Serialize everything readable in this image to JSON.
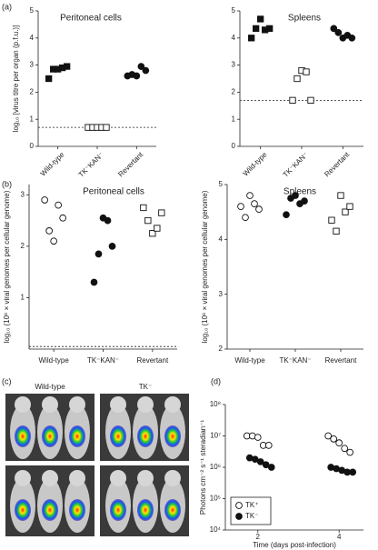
{
  "chart_data": [
    {
      "type": "strip",
      "panel": "(a)",
      "title": "Peritoneal cells",
      "ylabel": "log₁₀ [virus titre per organ (p.f.u.)]",
      "categories": [
        "Wild-type",
        "TK⁻KAN⁻",
        "Revertant"
      ],
      "values": [
        [
          2.5,
          2.85,
          2.85,
          2.9,
          2.95
        ],
        [
          0.7,
          0.7,
          0.7,
          0.7,
          0.7
        ],
        [
          2.6,
          2.65,
          2.6,
          2.95,
          2.8
        ]
      ],
      "markers": [
        "filled-square",
        "open-square",
        "filled-circle"
      ],
      "threshold": 0.7,
      "ylim": [
        0,
        5
      ],
      "yticks": [
        0,
        1,
        2,
        3,
        4,
        5
      ]
    },
    {
      "type": "strip",
      "title": "Spleens",
      "categories": [
        "Wild-type",
        "TK⁻KAN⁻",
        "Revertant"
      ],
      "values": [
        [
          4.0,
          4.35,
          4.7,
          4.3,
          4.35
        ],
        [
          1.7,
          2.5,
          2.8,
          2.75,
          1.7
        ],
        [
          4.35,
          4.2,
          4.0,
          4.1,
          4.0
        ]
      ],
      "markers": [
        "filled-square",
        "open-square",
        "filled-circle"
      ],
      "threshold": 1.7,
      "ylim": [
        0,
        5
      ],
      "yticks": [
        0,
        1,
        2,
        3,
        4,
        5
      ]
    },
    {
      "type": "strip",
      "panel": "(b)",
      "title": "Peritoneal cells",
      "ylabel": "log₁₀ (10⁶ × viral genomes per cellular genome)",
      "categories": [
        "Wild-type",
        "TK⁻KAN⁻",
        "Revertant"
      ],
      "values": [
        [
          2.9,
          2.3,
          2.1,
          2.8,
          2.55
        ],
        [
          1.3,
          1.85,
          2.55,
          2.5,
          2.0
        ],
        [
          2.75,
          2.5,
          2.25,
          2.35,
          2.65
        ]
      ],
      "markers": [
        "open-circle",
        "filled-circle",
        "open-square"
      ],
      "threshold": 0.05,
      "ylim": [
        0,
        3.2
      ],
      "yticks": [
        1,
        2,
        3
      ]
    },
    {
      "type": "strip",
      "title": "Spleens",
      "ylabel": "log₁₀ (10⁶ × viral genomes per cellular genome)",
      "categories": [
        "Wild-type",
        "TK⁻KAN⁻",
        "Revertant"
      ],
      "values": [
        [
          4.6,
          4.4,
          4.8,
          4.65,
          4.55
        ],
        [
          4.45,
          4.75,
          4.8,
          4.65,
          4.7
        ],
        [
          4.35,
          4.15,
          4.8,
          4.5,
          4.6
        ]
      ],
      "markers": [
        "open-circle",
        "filled-circle",
        "open-square"
      ],
      "ylim": [
        2,
        5
      ],
      "yticks": [
        2,
        3,
        4,
        5
      ]
    },
    {
      "type": "scatter",
      "panel": "(d)",
      "ylabel": "Photons cm⁻² s⁻¹ steradian⁻¹",
      "xlabel": "Time (days post-infection)",
      "log_y": true,
      "legend": "lower left",
      "series": [
        {
          "name": "TK⁺",
          "marker": "open-circle",
          "x": [
            2,
            2,
            2,
            2,
            2,
            4,
            4,
            4,
            4,
            4
          ],
          "values": [
            10000000,
            10000000,
            9000000,
            5000000,
            5000000,
            10000000,
            8000000,
            6000000,
            4000000,
            3000000
          ]
        },
        {
          "name": "TK⁻",
          "marker": "filled-circle",
          "x": [
            2,
            2,
            2,
            2,
            2,
            4,
            4,
            4,
            4,
            4
          ],
          "values": [
            2000000,
            1800000,
            1500000,
            1200000,
            1000000,
            1000000,
            900000,
            800000,
            700000,
            700000
          ]
        }
      ],
      "xlim": [
        1.2,
        4.6
      ],
      "xticks": [
        2,
        4
      ],
      "ylim": [
        10000,
        100000000
      ],
      "yticks": [
        {
          "value": 10000,
          "label": "10⁴"
        },
        {
          "value": 100000,
          "label": "10⁵"
        },
        {
          "value": 1000000,
          "label": "10⁶"
        },
        {
          "value": 10000000,
          "label": "10⁷"
        },
        {
          "value": 100000000,
          "label": "10⁸"
        }
      ]
    }
  ],
  "panel_c": {
    "label": "(c)",
    "columns": [
      "Wild-type",
      "TK⁻"
    ]
  }
}
